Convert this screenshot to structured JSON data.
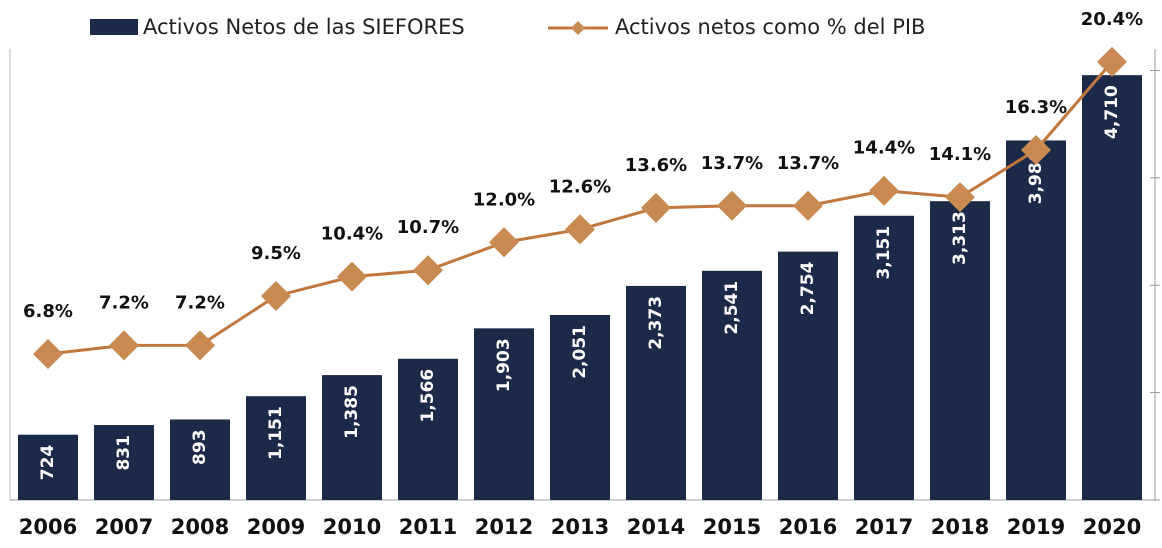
{
  "chart_data": {
    "type": "bar",
    "categories": [
      "2006",
      "2007",
      "2008",
      "2009",
      "2010",
      "2011",
      "2012",
      "2013",
      "2014",
      "2015",
      "2016",
      "2017",
      "2018",
      "2019",
      "2020"
    ],
    "ylim": [
      0,
      5000
    ],
    "y2lim": [
      0,
      21
    ],
    "y2ticks": [
      0,
      5,
      10,
      15,
      20
    ],
    "series": [
      {
        "name": "Activos Netos de las SIEFORES",
        "type": "bar",
        "color": "#1c2a4a",
        "values": [
          724,
          831,
          893,
          1151,
          1385,
          1566,
          1903,
          2051,
          2373,
          2541,
          2754,
          3151,
          3313,
          3986,
          4710
        ],
        "value_labels": [
          "724",
          "831",
          "893",
          "1,151",
          "1,385",
          "1,566",
          "1,903",
          "2,051",
          "2,373",
          "2,541",
          "2,754",
          "3,151",
          "3,313",
          "3,986",
          "4,710"
        ]
      },
      {
        "name": "Activos netos como % del PIB",
        "type": "line",
        "axis": "y2",
        "color": "#c0773e",
        "marker_color": "#c98a52",
        "values": [
          6.8,
          7.2,
          7.2,
          9.5,
          10.4,
          10.7,
          12.0,
          12.6,
          13.6,
          13.7,
          13.7,
          14.4,
          14.1,
          16.3,
          20.4
        ],
        "value_labels": [
          "6.8%",
          "7.2%",
          "7.2%",
          "9.5%",
          "10.4%",
          "10.7%",
          "12.0%",
          "12.6%",
          "13.6%",
          "13.7%",
          "13.7%",
          "14.4%",
          "14.1%",
          "16.3%",
          "20.4%"
        ]
      }
    ]
  }
}
